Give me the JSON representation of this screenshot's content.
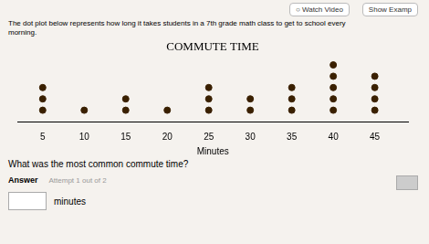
{
  "chart_data": {
    "type": "dot",
    "title": "COMMUTE TIME",
    "xlabel": "Minutes",
    "x": [
      5,
      10,
      15,
      20,
      25,
      30,
      35,
      40,
      45
    ],
    "values": [
      3,
      1,
      2,
      1,
      3,
      2,
      3,
      5,
      4
    ],
    "color": "#3a2000",
    "xlim": [
      2,
      49
    ],
    "xticks": [
      5,
      10,
      15,
      20,
      25,
      30,
      35,
      40,
      45
    ],
    "grid": false,
    "tick_labels": "x",
    "annotations": [
      "○ Watch Video",
      "Show Examp",
      "The dot plot below represents how long it takes students in a 7th grade math class to get to school every",
      "morning.",
      "What was the most common commute time?",
      "Answer",
      "Attempt 1 out of 2",
      "minutes"
    ]
  }
}
